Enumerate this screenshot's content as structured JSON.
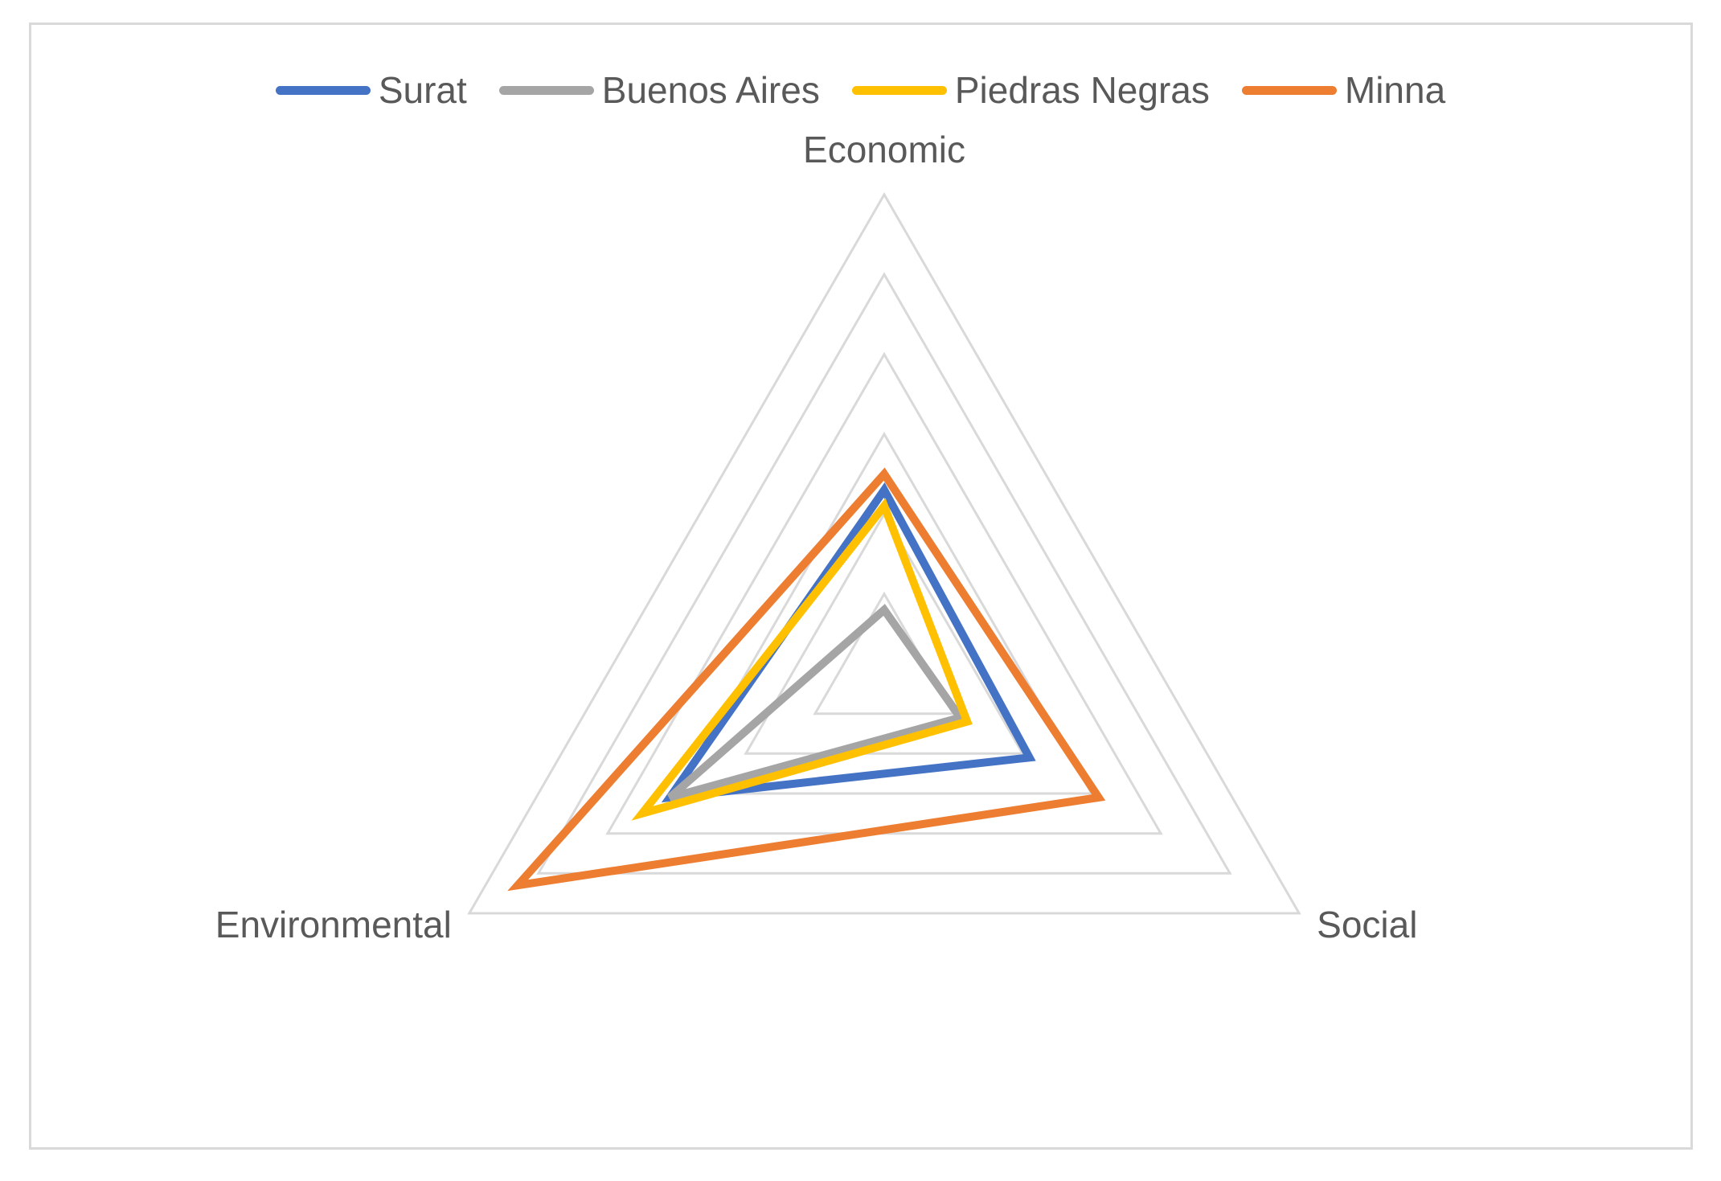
{
  "chart_data": {
    "type": "radar",
    "axes": [
      "Economic",
      "Social",
      "Environmental"
    ],
    "rlim": [
      0,
      6
    ],
    "grid": true,
    "grid_levels": 6,
    "legend_position": "top",
    "series": [
      {
        "name": "Surat",
        "color": "#4472C4",
        "values": [
          2.3,
          2.1,
          3.1
        ]
      },
      {
        "name": "Buenos Aires",
        "color": "#A5A5A5",
        "values": [
          0.8,
          1.1,
          3.1
        ]
      },
      {
        "name": "Piedras Negras",
        "color": "#FFC000",
        "values": [
          2.1,
          1.2,
          3.5
        ]
      },
      {
        "name": "Minna",
        "color": "#ED7D31",
        "values": [
          2.5,
          3.1,
          5.3
        ]
      }
    ]
  }
}
